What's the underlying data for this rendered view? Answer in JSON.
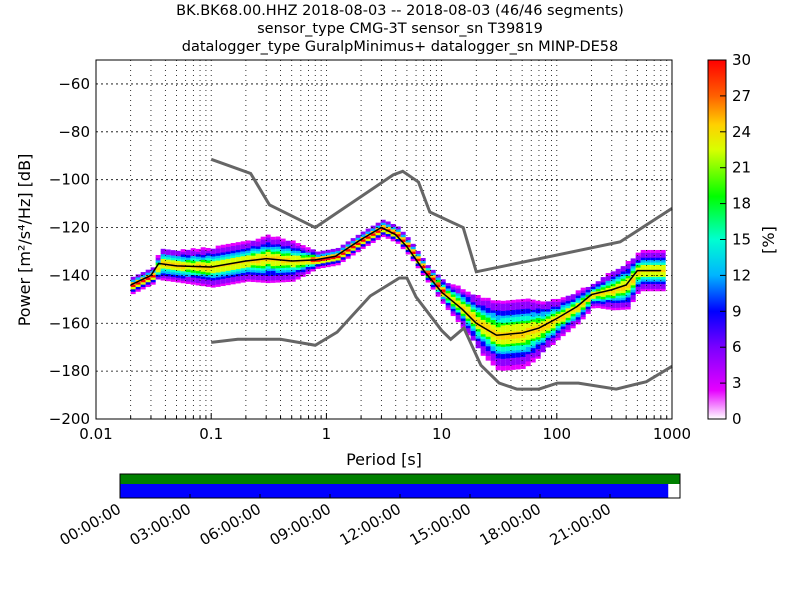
{
  "title": {
    "line1": "BK.BK68.00.HHZ   2018-08-03 -- 2018-08-03  (46/46 segments)",
    "line2": "sensor_type CMG-3T sensor_sn T39819",
    "line3": "datalogger_type GuralpMinimus+ datalogger_sn MINP-DE58"
  },
  "chart_data": {
    "type": "heatmap",
    "xlabel": "Period [s]",
    "ylabel": "Power [m²/s⁴/Hz] [dB]",
    "xscale": "log",
    "xlim": [
      0.01,
      1000
    ],
    "ylim": [
      -200,
      -50
    ],
    "xticks": [
      "0.01",
      "0.1",
      "1",
      "10",
      "100",
      "1000"
    ],
    "yticks": [
      "−200",
      "−180",
      "−160",
      "−140",
      "−120",
      "−100",
      "−80",
      "−60"
    ],
    "colorbar": {
      "label": "[%]",
      "range": [
        0,
        30
      ],
      "ticks": [
        "0",
        "3",
        "6",
        "9",
        "12",
        "15",
        "18",
        "21",
        "24",
        "27",
        "30"
      ]
    },
    "mean": {
      "period": [
        0.02,
        0.03,
        0.035,
        0.05,
        0.1,
        0.2,
        0.3,
        0.5,
        0.8,
        1.2,
        2,
        3,
        4,
        5,
        7,
        10,
        15,
        20,
        30,
        50,
        70,
        100,
        150,
        200,
        300,
        400,
        500,
        800
      ],
      "db": [
        -144,
        -140,
        -135,
        -136,
        -136.5,
        -134,
        -133,
        -134,
        -133.5,
        -132,
        -125,
        -120,
        -123,
        -128,
        -138,
        -147,
        -154,
        -160,
        -165,
        -164,
        -162,
        -158,
        -153,
        -148,
        -146,
        -144,
        -138,
        -138
      ],
      "spread": [
        2,
        2,
        4,
        4,
        5,
        5,
        6,
        5,
        2,
        2,
        2,
        2,
        2,
        2,
        2,
        3,
        5,
        7,
        9,
        9,
        7,
        5,
        4,
        3,
        5,
        6,
        5,
        5
      ]
    },
    "nhnm": {
      "period": [
        0.1,
        0.22,
        0.32,
        0.8,
        3.8,
        4.6,
        6.3,
        7.9,
        15.4,
        20,
        354.8,
        1000
      ],
      "db": [
        -91.5,
        -97.4,
        -110.5,
        -120,
        -98,
        -96.5,
        -101,
        -113.5,
        -120,
        -138.5,
        -126,
        -112
      ]
    },
    "nlnm": {
      "period": [
        0.1,
        0.17,
        0.4,
        0.8,
        1.24,
        2.4,
        4.3,
        5,
        6,
        10,
        12,
        15.6,
        21.9,
        31.6,
        45,
        70,
        101,
        154,
        328,
        600,
        1000
      ],
      "db": [
        -168,
        -166.7,
        -166.7,
        -169.2,
        -163.7,
        -148.6,
        -141.1,
        -141.1,
        -149,
        -163,
        -166.7,
        -162,
        -177.5,
        -185,
        -187.5,
        -187.5,
        -185,
        -185,
        -187.5,
        -184.4,
        -178
      ]
    }
  },
  "timeline": {
    "labels": [
      "00:00:00",
      "03:00:00",
      "06:00:00",
      "09:00:00",
      "12:00:00",
      "15:00:00",
      "18:00:00",
      "21:00:00"
    ],
    "data_coverage_fraction": 1.0,
    "used_coverage_fraction": 0.979,
    "colors": {
      "data": "#008000",
      "used": "#0000ff"
    }
  }
}
